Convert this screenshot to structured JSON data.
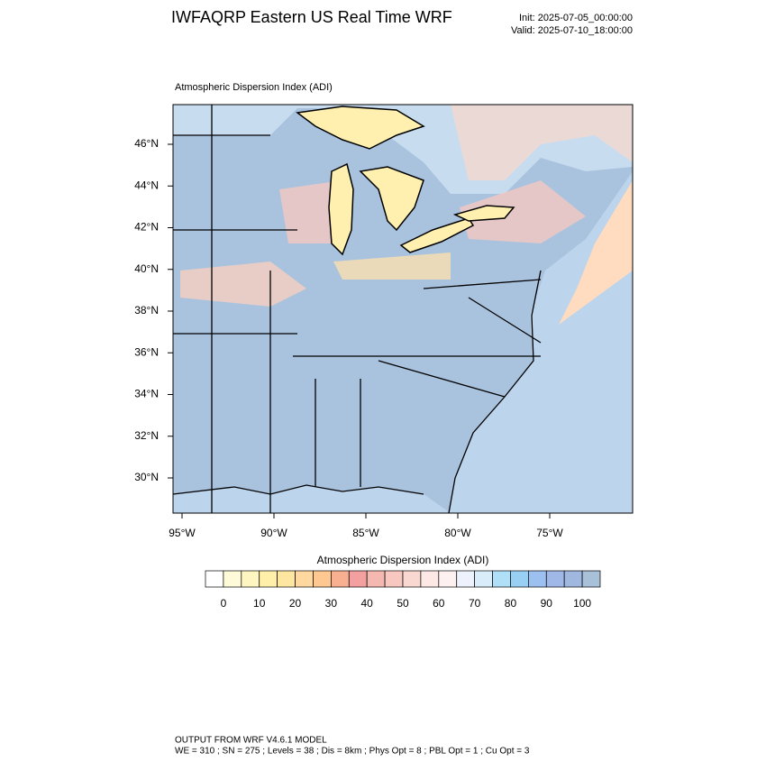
{
  "header": {
    "title": "IWFAQRP Eastern US Real Time WRF",
    "init": "Init: 2025-07-05_00:00:00",
    "valid": "Valid: 2025-07-10_18:00:00"
  },
  "map": {
    "title": "Atmospheric Dispersion Index   (ADI)",
    "lat_labels": [
      "46°N",
      "44°N",
      "42°N",
      "40°N",
      "38°N",
      "36°N",
      "34°N",
      "32°N",
      "30°N"
    ],
    "lon_labels": [
      "95°W",
      "90°W",
      "85°W",
      "80°W",
      "75°W"
    ]
  },
  "colorbar": {
    "title": "Atmospheric Dispersion Index  (ADI)",
    "labels": [
      0,
      10,
      20,
      30,
      40,
      50,
      60,
      70,
      80,
      90,
      100
    ],
    "colors": [
      "#ffffff",
      "#fffbd8",
      "#fff5c0",
      "#ffefa8",
      "#ffe6a0",
      "#ffd8a0",
      "#ffc890",
      "#f8b090",
      "#f4a0a0",
      "#f5b8b0",
      "#f8c8c0",
      "#f8d8d0",
      "#fce8e4",
      "#fdf0f0",
      "#eef2fc",
      "#d8ecfa",
      "#b0e0f8",
      "#98d0f4",
      "#9cc0f0",
      "#a0b8e8",
      "#a0b8e0",
      "#a8c0d8"
    ]
  },
  "footer": {
    "line1": "OUTPUT FROM WRF V4.6.1 MODEL",
    "line2": "WE = 310 ; SN = 275 ; Levels = 38 ; Dis = 8km ; Phys Opt = 8 ; PBL Opt = 1 ; Cu Opt = 3"
  }
}
